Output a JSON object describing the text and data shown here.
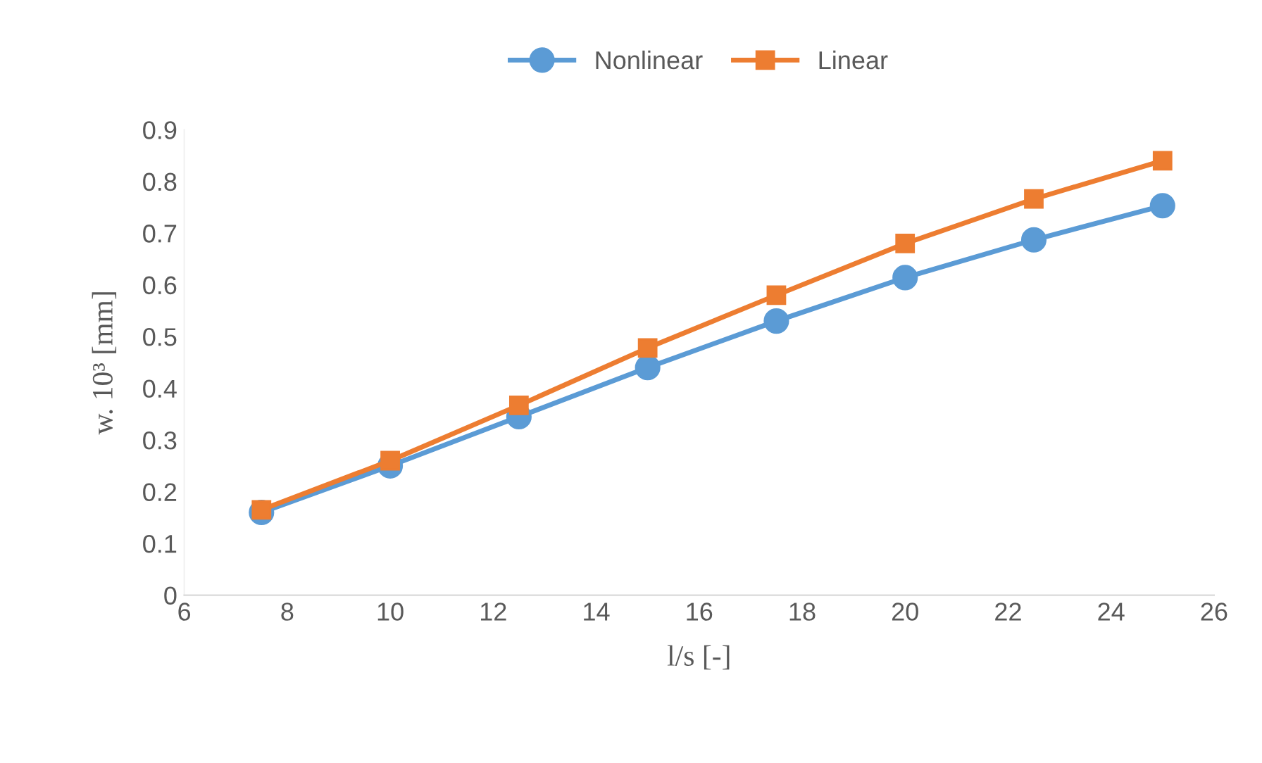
{
  "chart_data": {
    "type": "line",
    "xlabel": "l/s [-]",
    "ylabel": "w. 10³ [mm]",
    "x": [
      7.5,
      10,
      12.5,
      15,
      17.5,
      20,
      22.5,
      25
    ],
    "series": [
      {
        "name": "Nonlinear",
        "color": "#5b9bd5",
        "values": [
          0.16,
          0.25,
          0.345,
          0.44,
          0.53,
          0.614,
          0.687,
          0.753
        ]
      },
      {
        "name": "Linear",
        "color": "#ed7d31",
        "values": [
          0.165,
          0.26,
          0.367,
          0.478,
          0.58,
          0.68,
          0.766,
          0.84
        ],
        "marker": "square"
      }
    ],
    "marker": "circle",
    "line_style": "solid",
    "legend": "top",
    "grid": false,
    "xlim": [
      6,
      26
    ],
    "xticks": [
      6,
      8,
      10,
      12,
      14,
      16,
      18,
      20,
      22,
      24,
      26
    ],
    "ylim": [
      0,
      0.9
    ],
    "yticks": [
      0,
      0.1,
      0.2,
      0.3,
      0.4,
      0.5,
      0.6,
      0.7,
      0.8,
      0.9
    ]
  }
}
